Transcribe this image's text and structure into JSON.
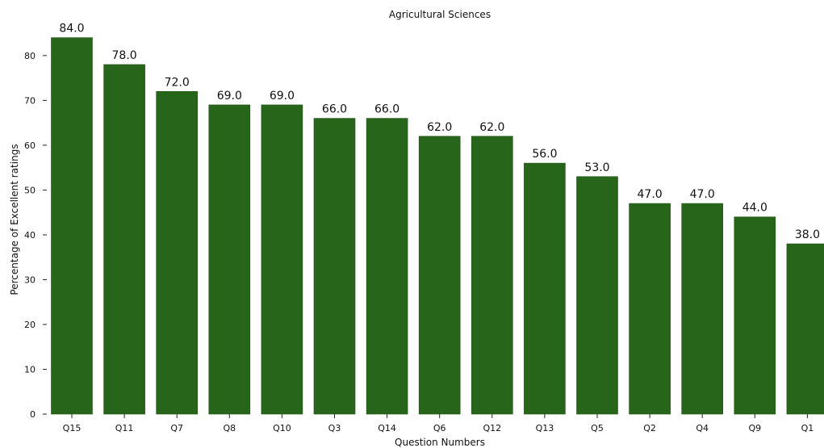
{
  "chart_data": {
    "type": "bar",
    "title": "Agricultural Sciences",
    "xlabel": "Question Numbers",
    "ylabel": "Percentage of Excellent ratings",
    "categories": [
      "Q15",
      "Q11",
      "Q7",
      "Q8",
      "Q10",
      "Q3",
      "Q14",
      "Q6",
      "Q12",
      "Q13",
      "Q5",
      "Q2",
      "Q4",
      "Q9",
      "Q1"
    ],
    "values": [
      84.0,
      78.0,
      72.0,
      69.0,
      69.0,
      66.0,
      66.0,
      62.0,
      62.0,
      56.0,
      53.0,
      47.0,
      47.0,
      44.0,
      38.0
    ],
    "data_labels": [
      "84.0",
      "78.0",
      "72.0",
      "69.0",
      "69.0",
      "66.0",
      "66.0",
      "62.0",
      "62.0",
      "56.0",
      "53.0",
      "47.0",
      "47.0",
      "44.0",
      "38.0"
    ],
    "ylim": [
      0,
      87
    ],
    "yticks": [
      0,
      10,
      20,
      30,
      40,
      50,
      60,
      70,
      80
    ],
    "ytick_labels": [
      "0",
      "10",
      "20",
      "30",
      "40",
      "50",
      "60",
      "70",
      "80"
    ],
    "grid": false,
    "legend": "none",
    "bar_color": "#27651a"
  }
}
